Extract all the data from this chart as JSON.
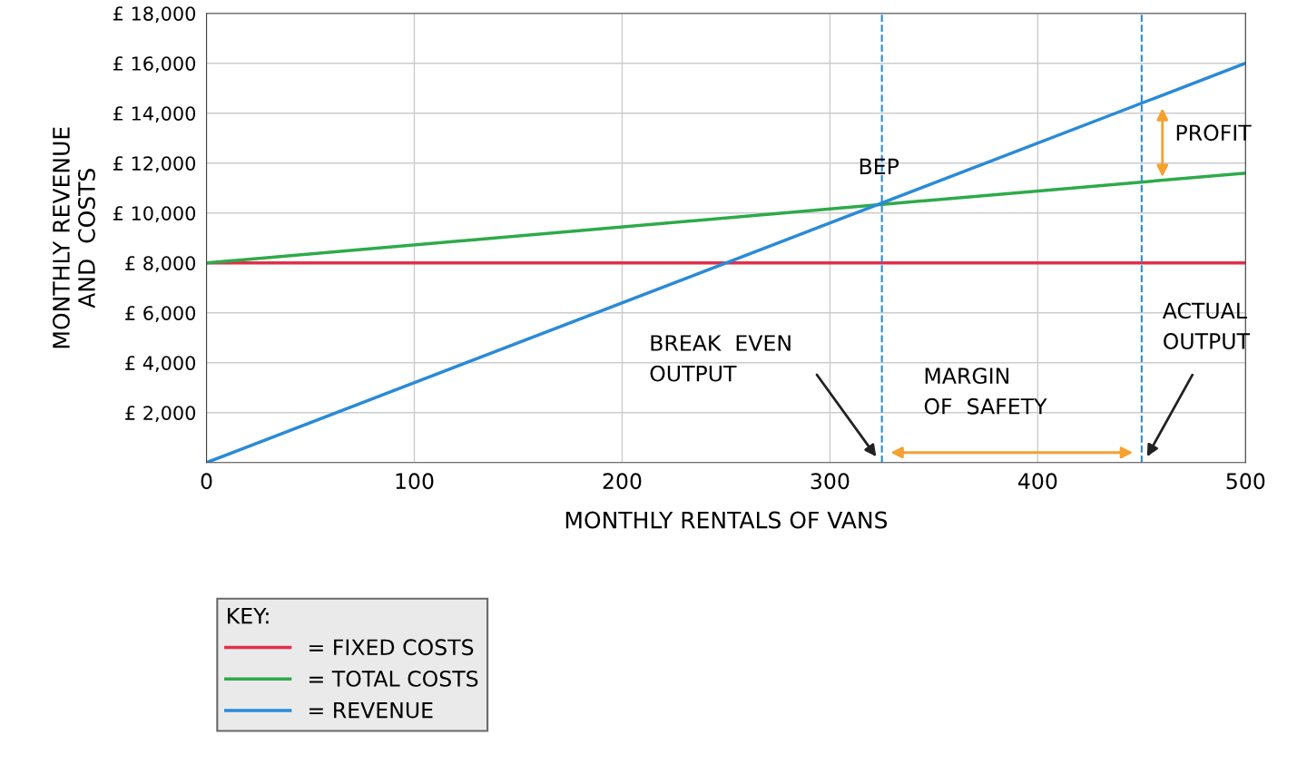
{
  "chart_data": {
    "type": "line",
    "xlabel": "MONTHLY RENTALS OF VANS",
    "ylabel": "MONTHLY REVENUE\nAND  COSTS",
    "x": [
      0,
      500
    ],
    "xlim": [
      0,
      500
    ],
    "xticks": [
      0,
      100,
      200,
      300,
      400,
      500
    ],
    "ylim": [
      0,
      18000
    ],
    "yticks": [
      {
        "value": 2000,
        "label": "£ 2,000"
      },
      {
        "value": 4000,
        "label": "£ 4,000"
      },
      {
        "value": 6000,
        "label": "£ 6,000"
      },
      {
        "value": 8000,
        "label": "£ 8,000"
      },
      {
        "value": 10000,
        "label": "£ 10,000"
      },
      {
        "value": 12000,
        "label": "£ 12,000"
      },
      {
        "value": 14000,
        "label": "£ 14,000"
      },
      {
        "value": 16000,
        "label": "£ 16,000"
      },
      {
        "value": 18000,
        "label": "£ 18,000"
      }
    ],
    "series": [
      {
        "name": "= FIXED COSTS",
        "color": "#e0304a",
        "values": [
          8000,
          8000
        ]
      },
      {
        "name": "= TOTAL COSTS",
        "color": "#2eaa4a",
        "values": [
          8000,
          11600
        ]
      },
      {
        "name": "= REVENUE",
        "color": "#2a8ad8",
        "values": [
          0,
          16000
        ]
      }
    ],
    "ref_lines": [
      {
        "axis": "x",
        "value": 325,
        "color": "#2a8ad8",
        "line_style": "dashed"
      },
      {
        "axis": "x",
        "value": 450,
        "color": "#2a8ad8",
        "line_style": "dashed"
      }
    ],
    "annotations": [
      "BEP",
      "PROFIT",
      "BREAK  EVEN\nOUTPUT",
      "ACTUAL\nOUTPUT",
      "MARGIN\nOF  SAFETY"
    ],
    "legend_title": "KEY:",
    "legend": "bottom",
    "grid": true,
    "marker": "none",
    "line_style": "solid"
  }
}
